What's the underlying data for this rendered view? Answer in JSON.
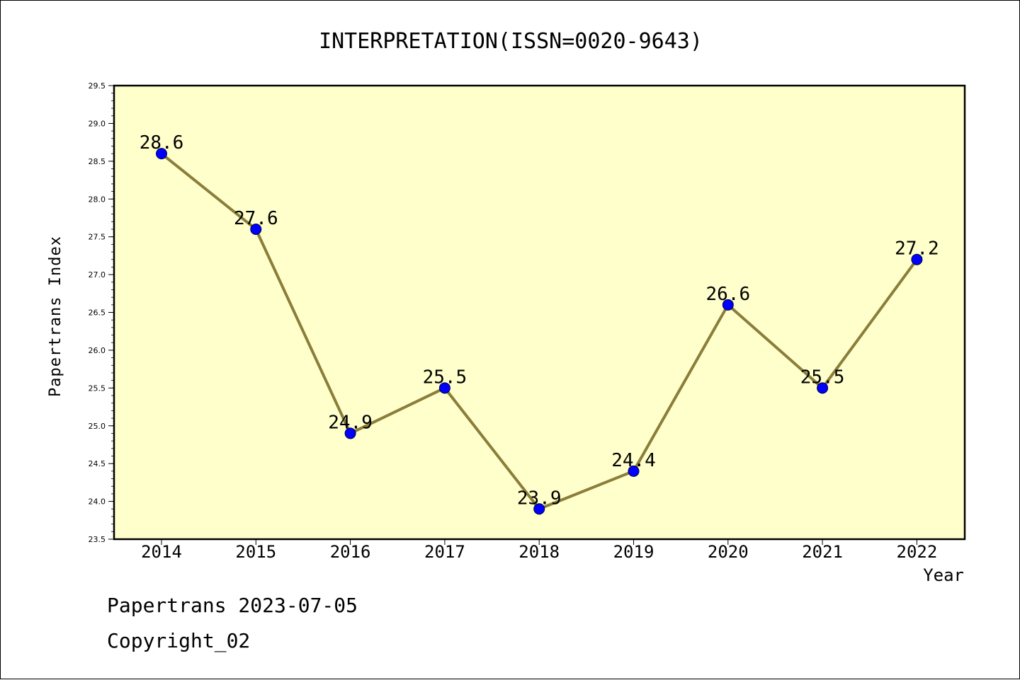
{
  "footer": {
    "line1": "Papertrans 2023-07-05",
    "line2": "Copyright_02"
  },
  "colors": {
    "plot_background": "#ffffcc",
    "line": "#8b7d3a",
    "marker": "#0000ff"
  },
  "chart_data": {
    "type": "line",
    "title": "INTERPRETATION(ISSN=0020-9643)",
    "xlabel": "Year",
    "ylabel": "Papertrans Index",
    "categories": [
      "2014",
      "2015",
      "2016",
      "2017",
      "2018",
      "2019",
      "2020",
      "2021",
      "2022"
    ],
    "values": [
      28.6,
      27.6,
      24.9,
      25.5,
      23.9,
      24.4,
      26.6,
      25.5,
      27.2
    ],
    "data_labels": [
      "28.6",
      "27.6",
      "24.9",
      "25.5",
      "23.9",
      "24.4",
      "26.6",
      "25.5",
      "27.2"
    ],
    "ylim": [
      23.5,
      29.5
    ],
    "yticks": [
      "23.5",
      "24.0",
      "24.5",
      "25.0",
      "25.5",
      "26.0",
      "26.5",
      "27.0",
      "27.5",
      "28.0",
      "28.5",
      "29.0",
      "29.5"
    ],
    "grid": false,
    "legend": "none"
  }
}
